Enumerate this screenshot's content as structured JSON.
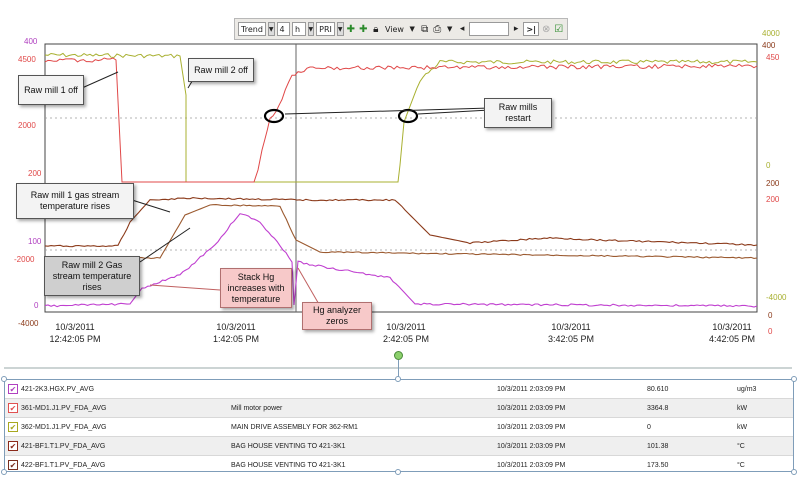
{
  "toolbar": {
    "mode": "Trend",
    "duration": "4",
    "unit": "h",
    "quality": "PRI",
    "view_label": "View",
    "go_label": ">|"
  },
  "axes": {
    "left_outer": [
      "400",
      "4500",
      "2000",
      "200",
      "100",
      "-2000",
      "0",
      "-4000"
    ],
    "left_inner": [
      "4500",
      "200",
      "2000",
      "200",
      "100",
      "-2000",
      "-4000"
    ],
    "right_outer": [
      "4000",
      "450",
      "0",
      "200",
      "-4000",
      "0"
    ],
    "right_inner": [
      "400",
      "200",
      "0"
    ],
    "x_ticks": [
      {
        "date": "10/3/2011",
        "time": "12:42:05 PM"
      },
      {
        "date": "10/3/2011",
        "time": "1:42:05 PM"
      },
      {
        "date": "10/3/2011",
        "time": "2:42:05 PM"
      },
      {
        "date": "10/3/2011",
        "time": "3:42:05 PM"
      },
      {
        "date": "10/3/2011",
        "time": "4:42:05 PM"
      }
    ]
  },
  "annotations": {
    "raw_mill_1_off": "Raw mill 1 off",
    "raw_mill_2_off": "Raw mill 2 off",
    "raw_mills_restart": "Raw mills restart",
    "raw_mill_1_gas": "Raw mill 1 gas stream temperature rises",
    "raw_mill_2_gas": "Raw mill 2 Gas stream temperature rises",
    "stack_hg": "Stack Hg increases with temperature",
    "hg_zeros": "Hg analyzer zeros"
  },
  "legend": [
    {
      "tag": "421-2K3.HGX.PV_AVG",
      "description": "",
      "timestamp": "10/3/2011 2:03:09 PM",
      "value": "80.610",
      "unit": "ug/m3",
      "color": "#b040c0"
    },
    {
      "tag": "361-MD1.J1.PV_FDA_AVG",
      "description": "Mill motor power",
      "timestamp": "10/3/2011 2:03:09 PM",
      "value": "3364.8",
      "unit": "kW",
      "color": "#e05050"
    },
    {
      "tag": "362-MD1.J1.PV_FDA_AVG",
      "description": "MAIN DRIVE ASSEMBLY FOR 362-RM1",
      "timestamp": "10/3/2011 2:03:09 PM",
      "value": "0",
      "unit": "kW",
      "color": "#a8a820"
    },
    {
      "tag": "421-BF1.T1.PV_FDA_AVG",
      "description": "BAG HOUSE VENTING TO 421-3K1",
      "timestamp": "10/3/2011 2:03:09 PM",
      "value": "101.38",
      "unit": "°C",
      "color": "#8b2a1a"
    },
    {
      "tag": "422-BF1.T1.PV_FDA_AVG",
      "description": "BAG HOUSE VENTING TO 421-3K1",
      "timestamp": "10/3/2011 2:03:09 PM",
      "value": "173.50",
      "unit": "°C",
      "color": "#7a3020"
    }
  ],
  "colors": {
    "hg": "#c040d0",
    "mill1": "#e04848",
    "mill2": "#a8b030",
    "temp1": "#8b3a1a",
    "temp2": "#9b5a30"
  }
}
